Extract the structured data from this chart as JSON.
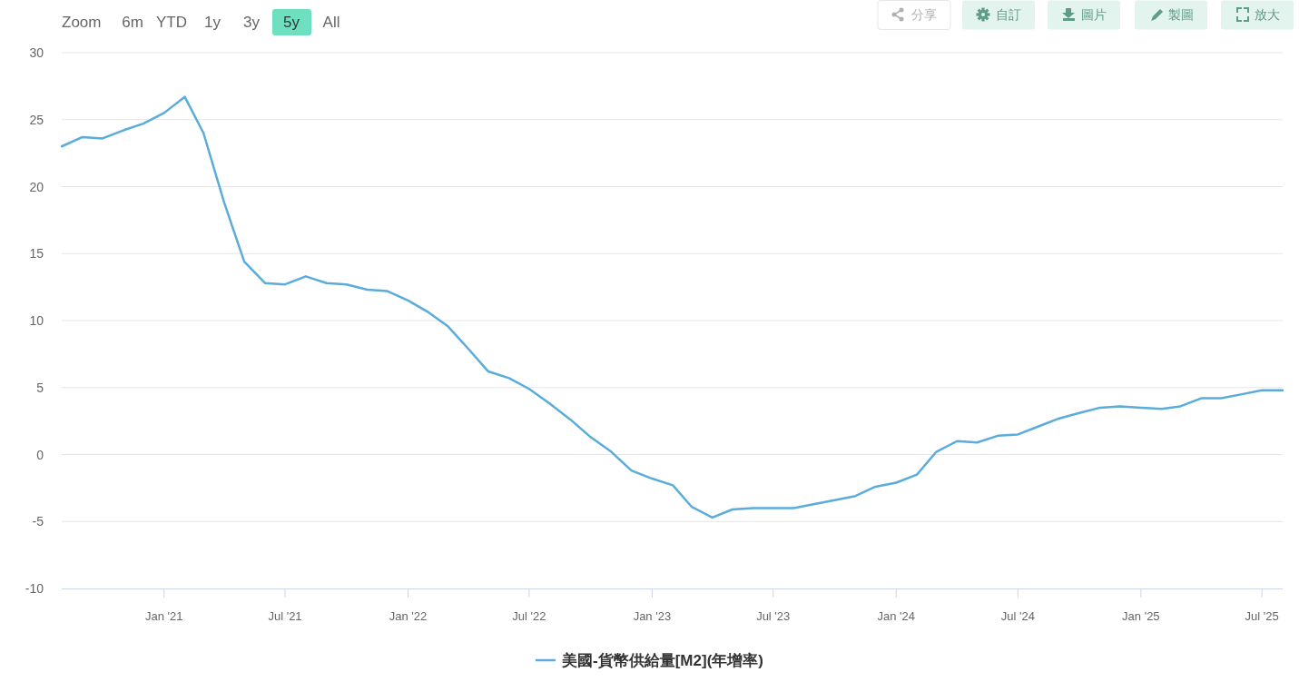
{
  "chart_data": {
    "type": "line",
    "x": [
      "2020-08",
      "2020-09",
      "2020-10",
      "2020-11",
      "2020-12",
      "2021-01",
      "2021-02",
      "2021-03",
      "2021-04",
      "2021-05",
      "2021-06",
      "2021-07",
      "2021-08",
      "2021-09",
      "2021-10",
      "2021-11",
      "2021-12",
      "2022-01",
      "2022-02",
      "2022-03",
      "2022-04",
      "2022-05",
      "2022-06",
      "2022-07",
      "2022-08",
      "2022-09",
      "2022-10",
      "2022-11",
      "2022-12",
      "2023-01",
      "2023-02",
      "2023-03",
      "2023-04",
      "2023-05",
      "2023-06",
      "2023-07",
      "2023-08",
      "2023-09",
      "2023-10",
      "2023-11",
      "2023-12",
      "2024-01",
      "2024-02",
      "2024-03",
      "2024-04",
      "2024-05",
      "2024-06",
      "2024-07",
      "2024-08",
      "2024-09",
      "2024-10",
      "2024-11",
      "2024-12",
      "2025-01",
      "2025-02",
      "2025-03",
      "2025-04",
      "2025-05",
      "2025-06",
      "2025-07",
      "2025-08"
    ],
    "series": [
      {
        "name": "美國-貨幣供給量[M2](年增率)",
        "color": "#5aacdb",
        "values": [
          23.0,
          23.7,
          23.6,
          24.2,
          24.7,
          25.5,
          26.7,
          24.0,
          18.8,
          14.4,
          12.8,
          12.7,
          13.3,
          12.8,
          12.7,
          12.3,
          12.2,
          11.5,
          10.6,
          9.6,
          7.9,
          6.2,
          5.7,
          4.9,
          3.8,
          2.6,
          1.3,
          0.2,
          -1.2,
          -1.8,
          -2.3,
          -3.9,
          -4.7,
          -4.1,
          -4.0,
          -4.0,
          -4.0,
          -3.7,
          -3.4,
          -3.1,
          -2.4,
          -2.1,
          -1.5,
          0.2,
          1.0,
          0.9,
          1.4,
          1.5,
          2.1,
          2.7,
          3.1,
          3.5,
          3.6,
          3.5,
          3.4,
          3.6,
          4.2,
          4.2,
          4.5,
          4.8,
          4.8
        ]
      }
    ],
    "xlim": [
      "2020-08",
      "2025-08"
    ],
    "xticks": [
      {
        "value": "2021-01",
        "label": "Jan '21"
      },
      {
        "value": "2021-07",
        "label": "Jul '21"
      },
      {
        "value": "2022-01",
        "label": "Jan '22"
      },
      {
        "value": "2022-07",
        "label": "Jul '22"
      },
      {
        "value": "2023-01",
        "label": "Jan '23"
      },
      {
        "value": "2023-07",
        "label": "Jul '23"
      },
      {
        "value": "2024-01",
        "label": "Jan '24"
      },
      {
        "value": "2024-07",
        "label": "Jul '24"
      },
      {
        "value": "2025-01",
        "label": "Jan '25"
      },
      {
        "value": "2025-07",
        "label": "Jul '25"
      }
    ],
    "ylim": [
      -10,
      30
    ],
    "yticks": [
      -10,
      -5,
      0,
      5,
      10,
      15,
      20,
      25,
      30
    ],
    "grid": "y",
    "legend": "bottom",
    "line_style": "solid",
    "annotations": [
      "Zoom",
      "6m",
      "YTD",
      "1y",
      "3y",
      "5y",
      "All",
      "分享",
      "自訂",
      "圖片",
      "製圖",
      "放大"
    ]
  }
}
